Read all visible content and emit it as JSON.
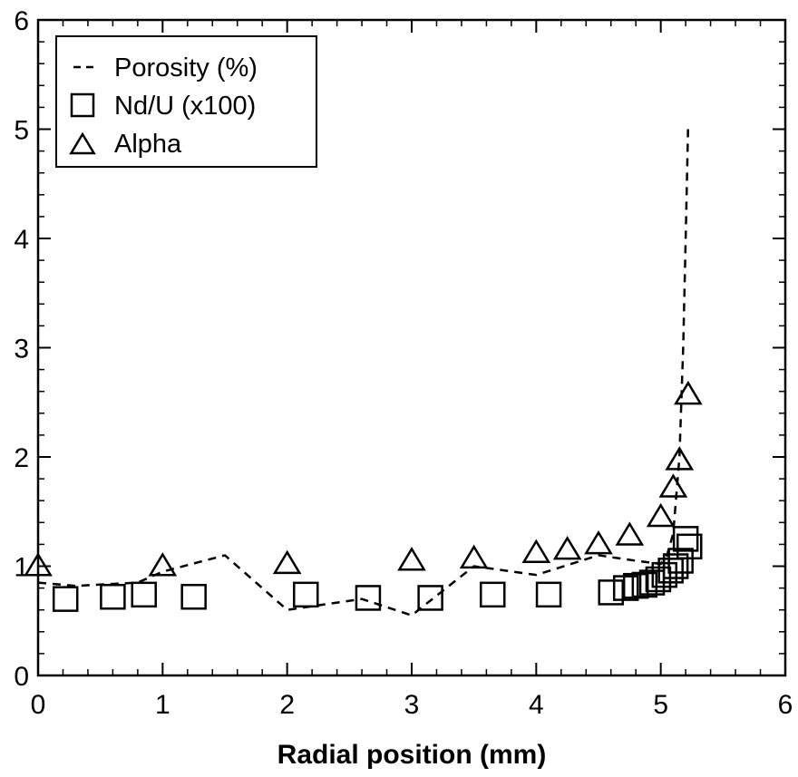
{
  "chart_data": {
    "type": "scatter",
    "title": "",
    "xlabel": "Radial position (mm)",
    "ylabel": "",
    "xlim": [
      0,
      6
    ],
    "ylim": [
      0,
      6
    ],
    "xticks": [
      0,
      1,
      2,
      3,
      4,
      5,
      6
    ],
    "yticks": [
      0,
      1,
      2,
      3,
      4,
      5,
      6
    ],
    "grid": false,
    "legend_position": "top-left",
    "series": [
      {
        "name": "Porosity (%)",
        "style": "dashed-line",
        "color": "#000000",
        "x": [
          0.0,
          0.3,
          0.8,
          1.0,
          1.5,
          2.0,
          2.6,
          3.0,
          3.5,
          4.0,
          4.5,
          4.8,
          5.0,
          5.05,
          5.1,
          5.15,
          5.18,
          5.2,
          5.22
        ],
        "y": [
          0.85,
          0.82,
          0.85,
          0.95,
          1.1,
          0.6,
          0.7,
          0.55,
          1.0,
          0.92,
          1.1,
          1.05,
          1.02,
          1.1,
          1.3,
          2.0,
          3.0,
          4.0,
          5.05
        ]
      },
      {
        "name": "Nd/U (x100)",
        "style": "open-square",
        "color": "#000000",
        "x": [
          0.22,
          0.6,
          0.85,
          1.25,
          2.15,
          2.65,
          3.15,
          3.65,
          4.1,
          4.6,
          4.72,
          4.8,
          4.87,
          4.93,
          4.98,
          5.03,
          5.08,
          5.12,
          5.16,
          5.2,
          5.23
        ],
        "y": [
          0.7,
          0.72,
          0.74,
          0.72,
          0.74,
          0.71,
          0.71,
          0.74,
          0.74,
          0.76,
          0.8,
          0.82,
          0.83,
          0.85,
          0.88,
          0.92,
          0.96,
          1.0,
          1.05,
          1.25,
          1.18
        ]
      },
      {
        "name": "Alpha",
        "style": "open-triangle",
        "color": "#000000",
        "x": [
          0.0,
          1.0,
          2.0,
          3.0,
          3.5,
          4.0,
          4.25,
          4.5,
          4.75,
          5.0,
          5.1,
          5.15,
          5.22
        ],
        "y": [
          1.0,
          1.0,
          1.02,
          1.05,
          1.07,
          1.12,
          1.15,
          1.2,
          1.28,
          1.45,
          1.72,
          1.97,
          2.57
        ]
      }
    ]
  }
}
